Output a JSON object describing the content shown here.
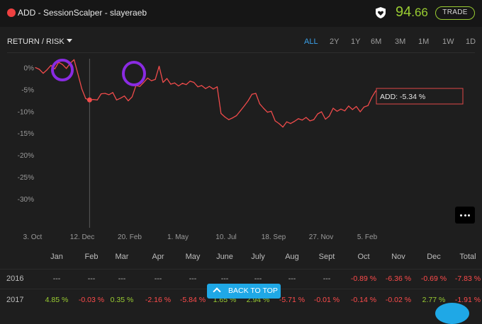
{
  "header": {
    "title": "ADD - SessionScalper - slayeraeb",
    "score_int": "94",
    "score_dec": ".66",
    "trade_label": "TRADE",
    "accent": "#9acd32",
    "rec_color": "#ef4040"
  },
  "toolbar": {
    "view_select": "RETURN / RISK",
    "ranges": [
      "ALL",
      "2Y",
      "1Y",
      "6M",
      "3M",
      "1M",
      "1W",
      "1D"
    ],
    "active_range": "ALL"
  },
  "chart_data": {
    "type": "line",
    "series": [
      {
        "name": "ADD",
        "color": "#ef4b4b",
        "points": [
          [
            "3. Oct",
            0.0
          ],
          [
            "",
            -0.4
          ],
          [
            "",
            -1.3
          ],
          [
            "",
            -0.5
          ],
          [
            "",
            0.5
          ],
          [
            "",
            -0.3
          ],
          [
            "",
            1.2
          ],
          [
            "",
            0.7
          ],
          [
            "",
            -0.2
          ],
          [
            "",
            1.0
          ],
          [
            "",
            1.8
          ],
          [
            "",
            -1.5
          ],
          [
            "",
            -4.9
          ],
          [
            "",
            -7.1
          ],
          [
            "",
            -7.4
          ],
          [
            "",
            -7.3
          ],
          [
            "",
            -7.4
          ],
          [
            "",
            -6.0
          ],
          [
            "",
            -5.9
          ],
          [
            "",
            -6.2
          ],
          [
            "",
            -5.7
          ],
          [
            "",
            -7.4
          ],
          [
            "",
            -7.0
          ],
          [
            "",
            -6.5
          ],
          [
            "",
            -7.6
          ],
          [
            "",
            -6.7
          ],
          [
            "",
            -4.1
          ],
          [
            "",
            -4.3
          ],
          [
            "",
            -3.4
          ],
          [
            "",
            -2.4
          ],
          [
            "",
            -3.0
          ],
          [
            "",
            -2.7
          ],
          [
            "",
            0.3
          ],
          [
            "",
            -3.4
          ],
          [
            "",
            -2.5
          ],
          [
            "",
            -3.8
          ],
          [
            "",
            -3.5
          ],
          [
            "",
            -4.2
          ],
          [
            "",
            -3.6
          ],
          [
            "",
            -3.9
          ],
          [
            "",
            -3.1
          ],
          [
            "",
            -3.4
          ],
          [
            "",
            -4.4
          ],
          [
            "",
            -4.1
          ],
          [
            "",
            -4.8
          ],
          [
            "",
            -4.3
          ],
          [
            "",
            -4.9
          ],
          [
            "",
            -4.4
          ],
          [
            "",
            -10.5
          ],
          [
            "",
            -11.3
          ],
          [
            "",
            -11.9
          ],
          [
            "",
            -11.5
          ],
          [
            "",
            -11.0
          ],
          [
            "",
            -9.9
          ],
          [
            "",
            -8.8
          ],
          [
            "",
            -7.6
          ],
          [
            "",
            -6.1
          ],
          [
            "",
            -5.9
          ],
          [
            "",
            -8.3
          ],
          [
            "",
            -9.3
          ],
          [
            "",
            -10.2
          ],
          [
            "",
            -10.0
          ],
          [
            "",
            -12.2
          ],
          [
            "",
            -12.8
          ],
          [
            "",
            -13.6
          ],
          [
            "",
            -12.4
          ],
          [
            "",
            -12.8
          ],
          [
            "",
            -12.3
          ],
          [
            "",
            -11.7
          ],
          [
            "",
            -12.0
          ],
          [
            "",
            -11.4
          ],
          [
            "",
            -12.2
          ],
          [
            "",
            -11.9
          ],
          [
            "",
            -10.6
          ],
          [
            "",
            -10.1
          ],
          [
            "",
            -11.8
          ],
          [
            "",
            -11.1
          ],
          [
            "",
            -9.3
          ],
          [
            "",
            -10.0
          ],
          [
            "",
            -9.5
          ],
          [
            "",
            -9.9
          ],
          [
            "",
            -8.8
          ],
          [
            "",
            -9.6
          ],
          [
            "",
            -8.9
          ],
          [
            "",
            -10.1
          ],
          [
            "",
            -9.0
          ],
          [
            "",
            -8.7
          ],
          [
            "",
            -6.8
          ],
          [
            "",
            -5.34
          ]
        ]
      }
    ],
    "x_tick_labels": [
      "3. Oct",
      "12. Dec",
      "20. Feb",
      "1. May",
      "10. Jul",
      "18. Sep",
      "27. Nov",
      "5. Feb"
    ],
    "y_tick_labels": [
      "0%",
      "-5%",
      "-10%",
      "-15%",
      "-20%",
      "-25%",
      "-30%"
    ],
    "y_ticks": [
      0,
      -5,
      -10,
      -15,
      -20,
      -25,
      -30
    ],
    "ylim": [
      -36,
      3
    ],
    "crosshair_index": 14,
    "tooltip": "ADD: -5.34 %",
    "grid": false,
    "annotations": [
      "purple circle around first peak",
      "purple circle around second peak"
    ],
    "annotation_color": "#8a2be2"
  },
  "table": {
    "columns": [
      "Jan",
      "Feb",
      "Mar",
      "Apr",
      "May",
      "June",
      "July",
      "Aug",
      "Sept",
      "Oct",
      "Nov",
      "Dec",
      "Total"
    ],
    "rows": [
      {
        "year": "2016",
        "values": [
          "---",
          "---",
          "---",
          "---",
          "---",
          "---",
          "---",
          "---",
          "---",
          "-0.89 %",
          "-6.36 %",
          "-0.69 %",
          "-7.83 %"
        ],
        "signs": [
          "z",
          "z",
          "z",
          "z",
          "z",
          "z",
          "z",
          "z",
          "z",
          "n",
          "n",
          "n",
          "n"
        ]
      },
      {
        "year": "2017",
        "values": [
          "4.85 %",
          "-0.03 %",
          "0.35 %",
          "-2.16 %",
          "-5.84 %",
          "1.65 %",
          "2.94 %",
          "-5.71 %",
          "-0.01 %",
          "-0.14 %",
          "-0.02 %",
          "2.77 %",
          "-1.91 %"
        ],
        "signs": [
          "p",
          "n",
          "p",
          "n",
          "n",
          "p",
          "p",
          "n",
          "n",
          "n",
          "n",
          "p",
          "n"
        ]
      }
    ]
  },
  "back_to_top": "BACK TO TOP",
  "icons": {
    "shield": "shield-heart-icon",
    "more": "more-dots-icon",
    "up": "chevron-up-icon"
  }
}
